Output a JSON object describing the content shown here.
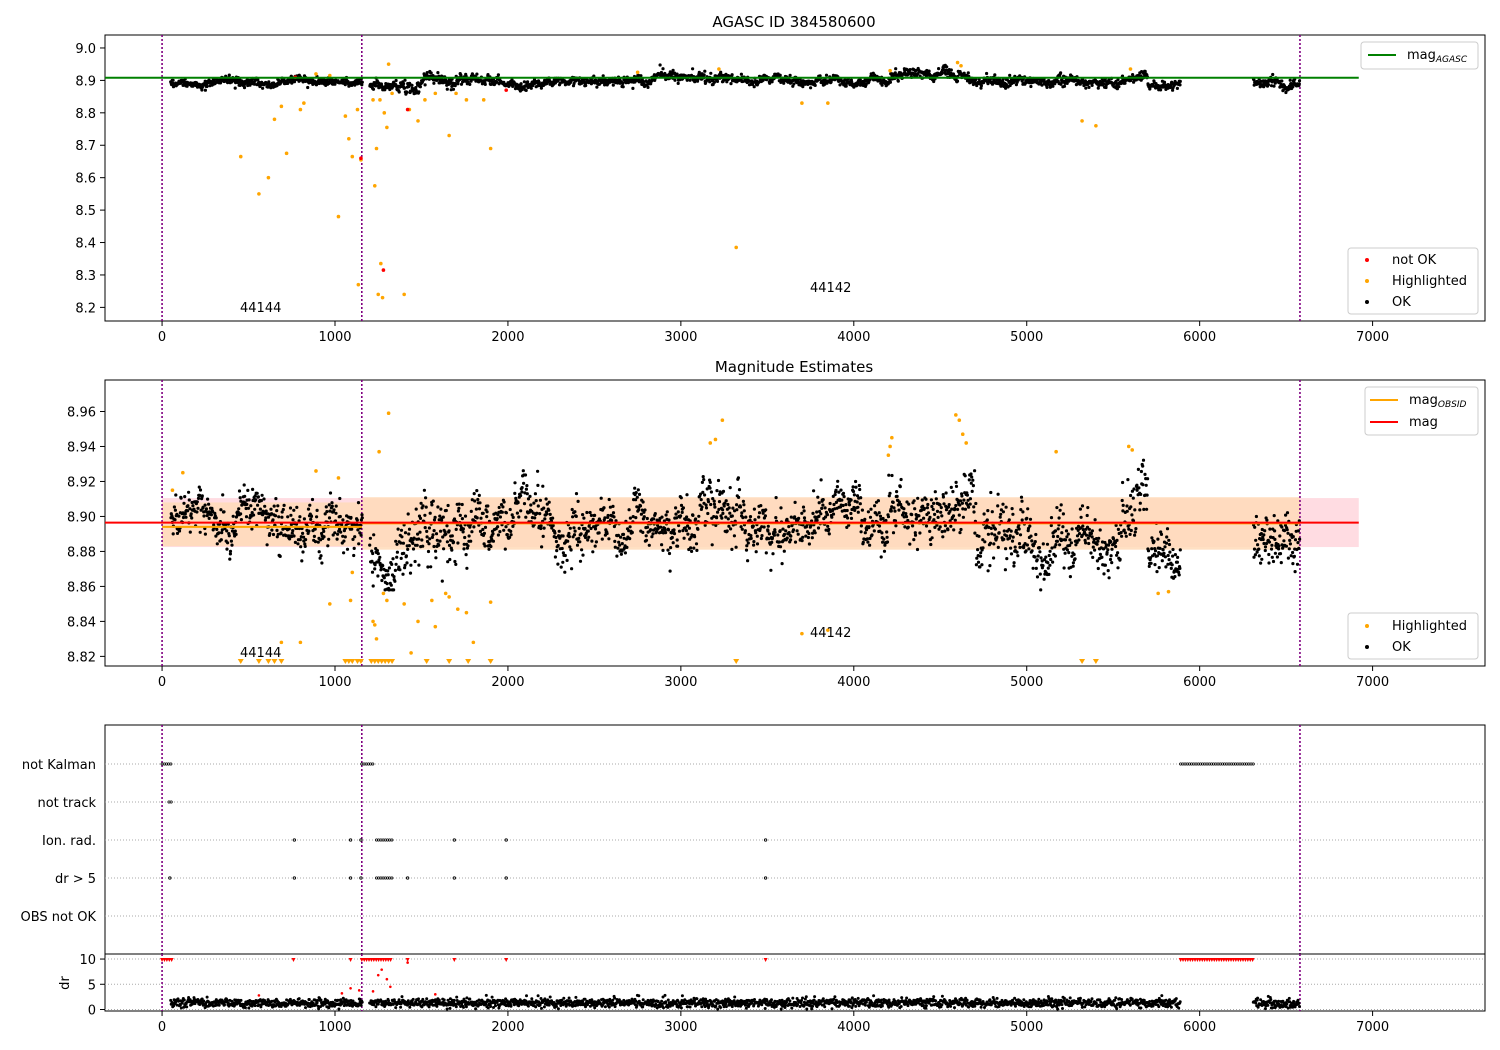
{
  "figure": {
    "title_top": "AGASC ID 384580600"
  },
  "colors": {
    "ok": "#000000",
    "highlighted": "#ffa500",
    "not_ok": "#ff0000",
    "agasc_line": "#008000",
    "mag_line": "#ff0000",
    "obsid_line": "#ffa500",
    "band_outer": "#ffc0cb",
    "band_inner": "#ffdab9",
    "obs_boundary": "#800080",
    "flag_line": "#aaaaaa"
  },
  "chart_data": [
    {
      "type": "scatter",
      "id": "agasc-panel",
      "title": "AGASC ID 384580600",
      "xlim": [
        -330,
        7650
      ],
      "ylim": [
        8.158,
        9.04
      ],
      "x_ticks": [
        "0",
        "1000",
        "2000",
        "3000",
        "4000",
        "5000",
        "6000",
        "7000"
      ],
      "y_ticks": [
        "8.2",
        "8.3",
        "8.4",
        "8.5",
        "8.6",
        "8.7",
        "8.8",
        "8.9",
        "9.0"
      ],
      "hline": {
        "name": "mag_AGASC",
        "label_main": "mag",
        "label_sub": "AGASC",
        "y": 8.908,
        "x": [
          -330,
          6920
        ]
      },
      "obs_boundaries": [
        0,
        1155,
        6580
      ],
      "obsids": [
        {
          "label": "44144",
          "x": 580,
          "y": 8.193
        },
        {
          "label": "44142",
          "x": 3950,
          "y": 8.25
        }
      ],
      "ok_segments": [
        {
          "x0": 50,
          "x1": 1160,
          "mean": 8.896,
          "spread": 0.009
        },
        {
          "x0": 1200,
          "x1": 1350,
          "mean": 8.883,
          "spread": 0.011
        },
        {
          "x0": 1350,
          "x1": 1700,
          "mean": 8.888,
          "spread": 0.013
        },
        {
          "x0": 1700,
          "x1": 2700,
          "mean": 8.898,
          "spread": 0.011
        },
        {
          "x0": 2700,
          "x1": 3100,
          "mean": 8.902,
          "spread": 0.01
        },
        {
          "x0": 3100,
          "x1": 3300,
          "mean": 8.912,
          "spread": 0.012
        },
        {
          "x0": 3300,
          "x1": 4200,
          "mean": 8.901,
          "spread": 0.01
        },
        {
          "x0": 4200,
          "x1": 4700,
          "mean": 8.908,
          "spread": 0.012
        },
        {
          "x0": 4700,
          "x1": 5200,
          "mean": 8.893,
          "spread": 0.012
        },
        {
          "x0": 5200,
          "x1": 5550,
          "mean": 8.896,
          "spread": 0.01
        },
        {
          "x0": 5550,
          "x1": 5700,
          "mean": 8.906,
          "spread": 0.012
        },
        {
          "x0": 5700,
          "x1": 5890,
          "mean": 8.885,
          "spread": 0.01
        },
        {
          "x0": 6310,
          "x1": 6580,
          "mean": 8.893,
          "spread": 0.011
        }
      ],
      "highlighted_points": [
        [
          455,
          8.665
        ],
        [
          560,
          8.55
        ],
        [
          615,
          8.6
        ],
        [
          650,
          8.78
        ],
        [
          690,
          8.82
        ],
        [
          720,
          8.675
        ],
        [
          800,
          8.81
        ],
        [
          820,
          8.83
        ],
        [
          1020,
          8.48
        ],
        [
          1060,
          8.79
        ],
        [
          1080,
          8.72
        ],
        [
          1100,
          8.665
        ],
        [
          1130,
          8.81
        ],
        [
          1150,
          8.655
        ],
        [
          1135,
          8.27
        ],
        [
          1220,
          8.84
        ],
        [
          1230,
          8.575
        ],
        [
          1240,
          8.69
        ],
        [
          1250,
          8.24
        ],
        [
          1260,
          8.84
        ],
        [
          1275,
          8.23
        ],
        [
          1285,
          8.8
        ],
        [
          1300,
          8.755
        ],
        [
          1310,
          8.95
        ],
        [
          1330,
          8.86
        ],
        [
          1400,
          8.24
        ],
        [
          1430,
          8.81
        ],
        [
          1480,
          8.775
        ],
        [
          1520,
          8.84
        ],
        [
          1580,
          8.86
        ],
        [
          1660,
          8.73
        ],
        [
          1700,
          8.86
        ],
        [
          1760,
          8.84
        ],
        [
          1860,
          8.84
        ],
        [
          1900,
          8.69
        ],
        [
          1265,
          8.335
        ],
        [
          3320,
          8.385
        ],
        [
          3700,
          8.83
        ],
        [
          3850,
          8.83
        ],
        [
          5320,
          8.775
        ],
        [
          5400,
          8.76
        ],
        [
          890,
          8.92
        ],
        [
          970,
          8.915
        ],
        [
          4210,
          8.93
        ],
        [
          4600,
          8.955
        ],
        [
          4620,
          8.945
        ],
        [
          5600,
          8.935
        ],
        [
          2750,
          8.925
        ],
        [
          3220,
          8.935
        ]
      ],
      "not_ok_points": [
        [
          1150,
          8.66
        ],
        [
          1280,
          8.315
        ],
        [
          1420,
          8.81
        ],
        [
          1990,
          8.87
        ],
        [
          770,
          8.91
        ]
      ],
      "legend_line": {
        "entries": [
          "mag_AGASC"
        ],
        "placement": "upper right"
      },
      "legend_points": {
        "entries": [
          "not OK",
          "Highlighted",
          "OK"
        ],
        "placement": "lower right"
      }
    },
    {
      "type": "scatter",
      "id": "estimates-panel",
      "title": "Magnitude Estimates",
      "xlim": [
        -330,
        7650
      ],
      "ylim": [
        8.8145,
        8.978
      ],
      "x_ticks": [
        "0",
        "1000",
        "2000",
        "3000",
        "4000",
        "5000",
        "6000",
        "7000"
      ],
      "y_ticks": [
        "8.82",
        "8.84",
        "8.86",
        "8.88",
        "8.90",
        "8.92",
        "8.94",
        "8.96"
      ],
      "mag_line": {
        "name": "mag",
        "y": 8.8965,
        "x": [
          0,
          6920
        ],
        "band": [
          8.8825,
          8.9105
        ]
      },
      "obsid_lines": [
        {
          "x": [
            0,
            1155
          ],
          "y": 8.894,
          "band": [
            8.883,
            8.908
          ]
        },
        {
          "x": [
            1155,
            6580
          ],
          "y": 8.896,
          "band": [
            8.881,
            8.911
          ]
        }
      ],
      "obs_boundaries": [
        0,
        1155,
        6580
      ],
      "obsids": [
        {
          "label": "44144",
          "x": 580,
          "y": 8.821
        },
        {
          "label": "44142",
          "x": 3950,
          "y": 8.8335
        }
      ],
      "ok_segments": [
        {
          "x0": 50,
          "x1": 1160,
          "mean": 8.896,
          "spread": 0.009
        },
        {
          "x0": 1200,
          "x1": 1350,
          "mean": 8.876,
          "spread": 0.011
        },
        {
          "x0": 1350,
          "x1": 1700,
          "mean": 8.878,
          "spread": 0.014
        },
        {
          "x0": 1700,
          "x1": 2700,
          "mean": 8.894,
          "spread": 0.011
        },
        {
          "x0": 2700,
          "x1": 3100,
          "mean": 8.9,
          "spread": 0.01
        },
        {
          "x0": 3100,
          "x1": 3300,
          "mean": 8.912,
          "spread": 0.012
        },
        {
          "x0": 3300,
          "x1": 4200,
          "mean": 8.9,
          "spread": 0.01
        },
        {
          "x0": 4200,
          "x1": 4700,
          "mean": 8.905,
          "spread": 0.012
        },
        {
          "x0": 4700,
          "x1": 5200,
          "mean": 8.887,
          "spread": 0.012
        },
        {
          "x0": 5200,
          "x1": 5550,
          "mean": 8.893,
          "spread": 0.01
        },
        {
          "x0": 5550,
          "x1": 5700,
          "mean": 8.91,
          "spread": 0.012
        },
        {
          "x0": 5700,
          "x1": 5890,
          "mean": 8.88,
          "spread": 0.01
        },
        {
          "x0": 6310,
          "x1": 6580,
          "mean": 8.888,
          "spread": 0.011
        }
      ],
      "highlighted_points": [
        [
          60,
          8.915
        ],
        [
          120,
          8.925
        ],
        [
          890,
          8.926
        ],
        [
          970,
          8.85
        ],
        [
          1020,
          8.922
        ],
        [
          1090,
          8.852
        ],
        [
          1100,
          8.868
        ],
        [
          1220,
          8.84
        ],
        [
          1230,
          8.838
        ],
        [
          1240,
          8.83
        ],
        [
          1255,
          8.937
        ],
        [
          1280,
          8.856
        ],
        [
          1300,
          8.852
        ],
        [
          1310,
          8.959
        ],
        [
          1400,
          8.85
        ],
        [
          1440,
          8.822
        ],
        [
          1480,
          8.84
        ],
        [
          1560,
          8.852
        ],
        [
          1580,
          8.837
        ],
        [
          1640,
          8.856
        ],
        [
          1660,
          8.854
        ],
        [
          1710,
          8.847
        ],
        [
          1760,
          8.845
        ],
        [
          1800,
          8.828
        ],
        [
          1900,
          8.851
        ],
        [
          3170,
          8.942
        ],
        [
          3200,
          8.944
        ],
        [
          3240,
          8.955
        ],
        [
          3700,
          8.833
        ],
        [
          3850,
          8.835
        ],
        [
          4200,
          8.935
        ],
        [
          4210,
          8.94
        ],
        [
          4220,
          8.945
        ],
        [
          4590,
          8.958
        ],
        [
          4610,
          8.955
        ],
        [
          4630,
          8.947
        ],
        [
          4650,
          8.942
        ],
        [
          5170,
          8.937
        ],
        [
          5590,
          8.94
        ],
        [
          5610,
          8.938
        ],
        [
          5760,
          8.856
        ],
        [
          5820,
          8.857
        ],
        [
          690,
          8.828
        ],
        [
          800,
          8.828
        ]
      ],
      "highlighted_below_floor_x": [
        455,
        560,
        615,
        650,
        690,
        1060,
        1080,
        1100,
        1130,
        1150,
        1210,
        1230,
        1250,
        1270,
        1290,
        1310,
        1330,
        1530,
        1660,
        1770,
        1900,
        3320,
        5320,
        5400
      ],
      "legend_line": {
        "entries": [
          "mag_OBSID",
          "mag"
        ],
        "placement": "upper right"
      },
      "legend_points": {
        "entries": [
          "Highlighted",
          "OK"
        ],
        "placement": "lower right"
      }
    },
    {
      "type": "scatter",
      "id": "flags-panel",
      "xlim": [
        -330,
        7650
      ],
      "x_ticks": [
        "0",
        "1000",
        "2000",
        "3000",
        "4000",
        "5000",
        "6000",
        "7000"
      ],
      "flag_rows": [
        "not Kalman",
        "not track",
        "Ion. rad.",
        "dr > 5",
        "OBS not OK"
      ],
      "obs_boundaries": [
        0,
        1155,
        6580
      ],
      "flag_points": {
        "not Kalman": [
          [
            0,
            60
          ],
          [
            1155,
            1230
          ],
          [
            5890,
            6310
          ]
        ],
        "not track": [
          [
            40,
            60
          ]
        ],
        "Ion. rad.": [
          [
            765,
            765
          ],
          [
            1090,
            1090
          ],
          [
            1150,
            1160
          ],
          [
            1240,
            1340
          ],
          [
            1690,
            1690
          ],
          [
            1990,
            1990
          ],
          [
            3490,
            3490
          ]
        ],
        "dr > 5": [
          [
            45,
            45
          ],
          [
            765,
            765
          ],
          [
            1090,
            1090
          ],
          [
            1150,
            1160
          ],
          [
            1240,
            1340
          ],
          [
            1420,
            1420
          ],
          [
            1690,
            1690
          ],
          [
            1990,
            1990
          ],
          [
            3490,
            3490
          ]
        ],
        "OBS not OK": []
      }
    },
    {
      "type": "scatter",
      "id": "dr-panel",
      "ylabel": "dr",
      "xlim": [
        -330,
        7650
      ],
      "ylim": [
        -0.3,
        11
      ],
      "x_ticks": [
        "0",
        "1000",
        "2000",
        "3000",
        "4000",
        "5000",
        "6000",
        "7000"
      ],
      "y_ticks": [
        "0",
        "5",
        "10"
      ],
      "obs_boundaries": [
        0,
        1155,
        6580
      ],
      "dr_segments": [
        [
          50,
          1160,
          1.3
        ],
        [
          1200,
          5890,
          1.3
        ],
        [
          6310,
          6580,
          1.2
        ]
      ],
      "dr_capped_ranges": [
        [
          0,
          60
        ],
        [
          1155,
          1330
        ],
        [
          5890,
          6310
        ]
      ],
      "dr_capped_points_x": [
        760,
        1090,
        1420,
        1690,
        1990,
        3490
      ],
      "dr_mid_points": [
        [
          560,
          2.8
        ],
        [
          1040,
          3.2
        ],
        [
          1090,
          4.2
        ],
        [
          1140,
          3.8
        ],
        [
          1220,
          3.6
        ],
        [
          1250,
          6.8
        ],
        [
          1270,
          7.9
        ],
        [
          1300,
          6.0
        ],
        [
          1320,
          4.5
        ],
        [
          1420,
          9.3
        ],
        [
          1580,
          3.0
        ]
      ]
    }
  ]
}
